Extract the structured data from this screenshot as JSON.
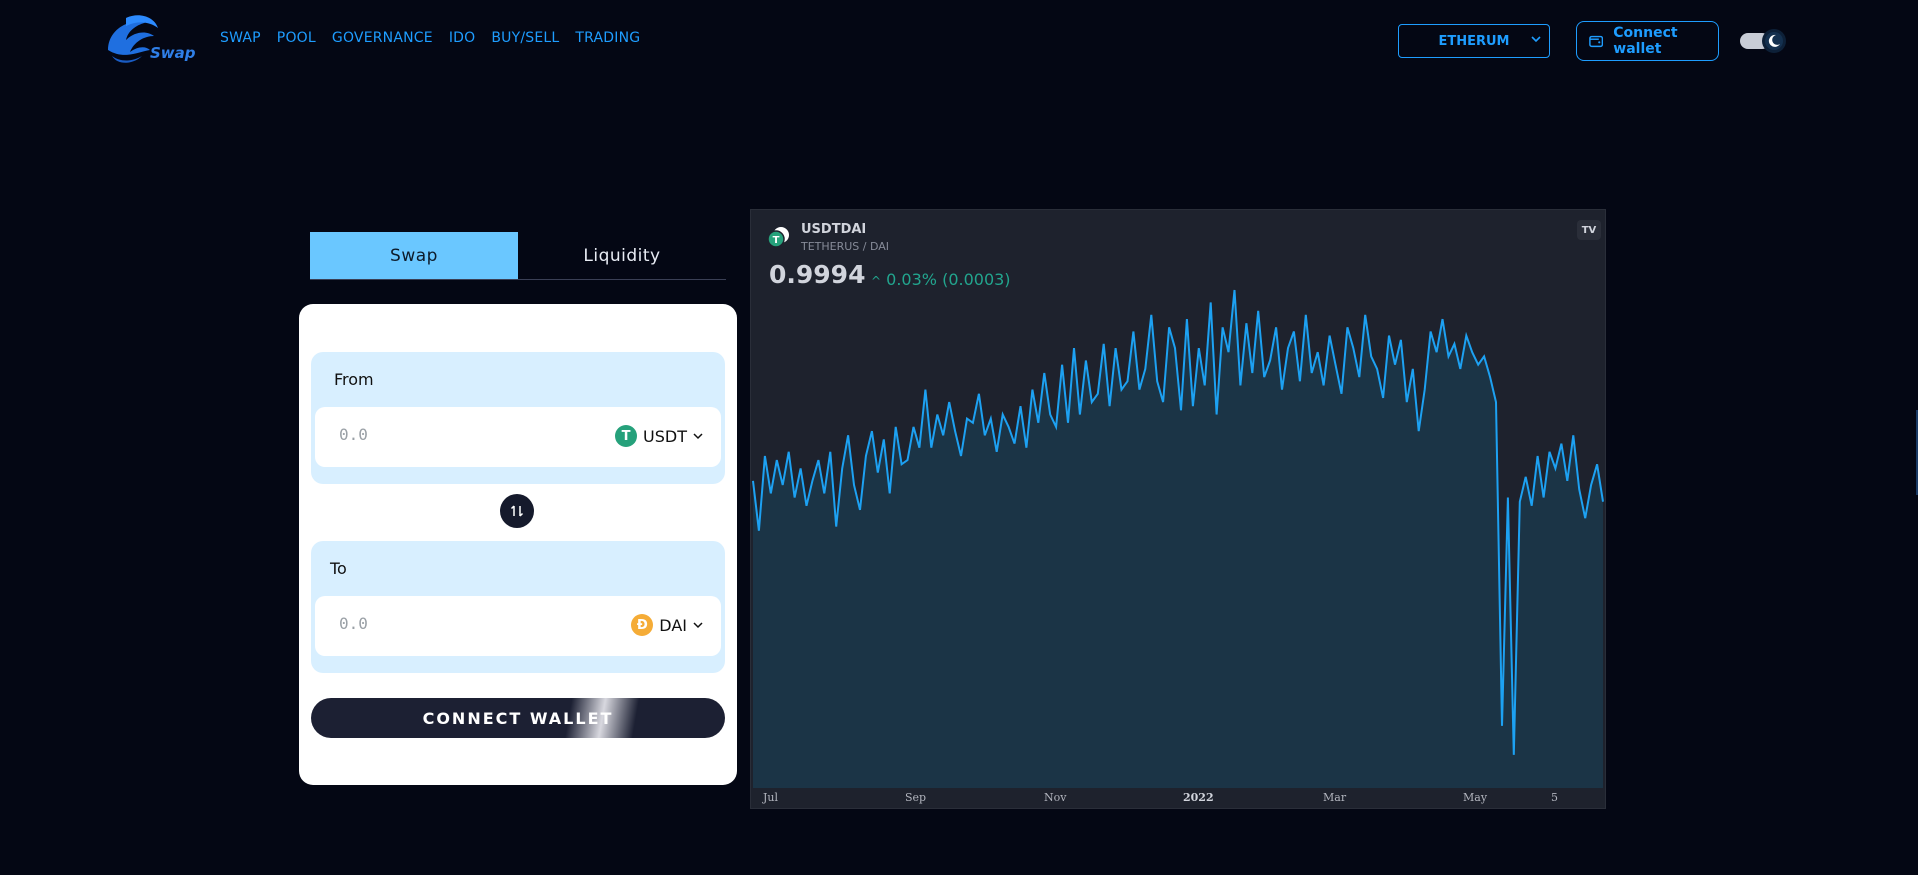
{
  "header": {
    "logo_text": "Swap",
    "nav": [
      "SWAP",
      "POOL",
      "GOVERNANCE",
      "IDO",
      "BUY/SELL",
      "TRADING"
    ],
    "network": "ETHERUM",
    "connect_wallet": "Connect wallet",
    "icons": [
      "wallet-icon",
      "chevron-down-icon",
      "theme-toggle"
    ]
  },
  "tabs": {
    "swap": "Swap",
    "liquidity": "Liquidity"
  },
  "swap_card": {
    "from": {
      "label": "From",
      "amount": "0.0",
      "token": "USDT",
      "token_color": "#26a17b"
    },
    "to": {
      "label": "To",
      "amount": "0.0",
      "token": "DAI",
      "token_color": "#f5ac37"
    },
    "connect_button": "CONNECT WALLET"
  },
  "chart_panel": {
    "symbol": "USDTDAI",
    "name": "TETHERUS / DAI",
    "price": "0.9994",
    "change": "0.03% (0.0003)"
  },
  "chart_data": {
    "type": "area",
    "title": "USDTDAI",
    "x_ticks": [
      "Jul",
      "Sep",
      "Nov",
      "2022",
      "Mar",
      "May",
      "5"
    ],
    "y_relative_range": [
      0,
      1
    ],
    "values": [
      0.74,
      0.62,
      0.8,
      0.71,
      0.79,
      0.73,
      0.81,
      0.7,
      0.77,
      0.68,
      0.74,
      0.79,
      0.71,
      0.81,
      0.63,
      0.77,
      0.85,
      0.73,
      0.67,
      0.8,
      0.86,
      0.76,
      0.84,
      0.71,
      0.87,
      0.78,
      0.79,
      0.87,
      0.82,
      0.96,
      0.82,
      0.9,
      0.85,
      0.93,
      0.86,
      0.8,
      0.89,
      0.88,
      0.95,
      0.85,
      0.89,
      0.81,
      0.9,
      0.87,
      0.83,
      0.92,
      0.82,
      0.96,
      0.88,
      1.0,
      0.9,
      0.87,
      1.02,
      0.88,
      1.06,
      0.9,
      1.03,
      0.93,
      0.95,
      1.07,
      0.92,
      1.06,
      0.96,
      0.98,
      1.1,
      0.96,
      1.01,
      1.14,
      0.98,
      0.93,
      1.11,
      1.06,
      0.91,
      1.13,
      0.92,
      1.06,
      0.97,
      1.17,
      0.9,
      1.11,
      1.05,
      1.2,
      0.97,
      1.12,
      1.0,
      1.15,
      0.99,
      1.03,
      1.11,
      0.96,
      1.06,
      1.1,
      0.98,
      1.14,
      1.0,
      1.05,
      0.97,
      1.09,
      1.02,
      0.95,
      1.11,
      1.06,
      0.99,
      1.14,
      1.04,
      1.01,
      0.94,
      1.09,
      1.02,
      1.08,
      0.93,
      1.01,
      0.86,
      0.96,
      1.1,
      1.05,
      1.13,
      1.04,
      1.07,
      1.01,
      1.09,
      1.05,
      1.02,
      1.04,
      0.99,
      0.93,
      0.15,
      0.7,
      0.08,
      0.69,
      0.75,
      0.68,
      0.8,
      0.7,
      0.81,
      0.77,
      0.83,
      0.74,
      0.85,
      0.72,
      0.65,
      0.73,
      0.78,
      0.69
    ]
  }
}
